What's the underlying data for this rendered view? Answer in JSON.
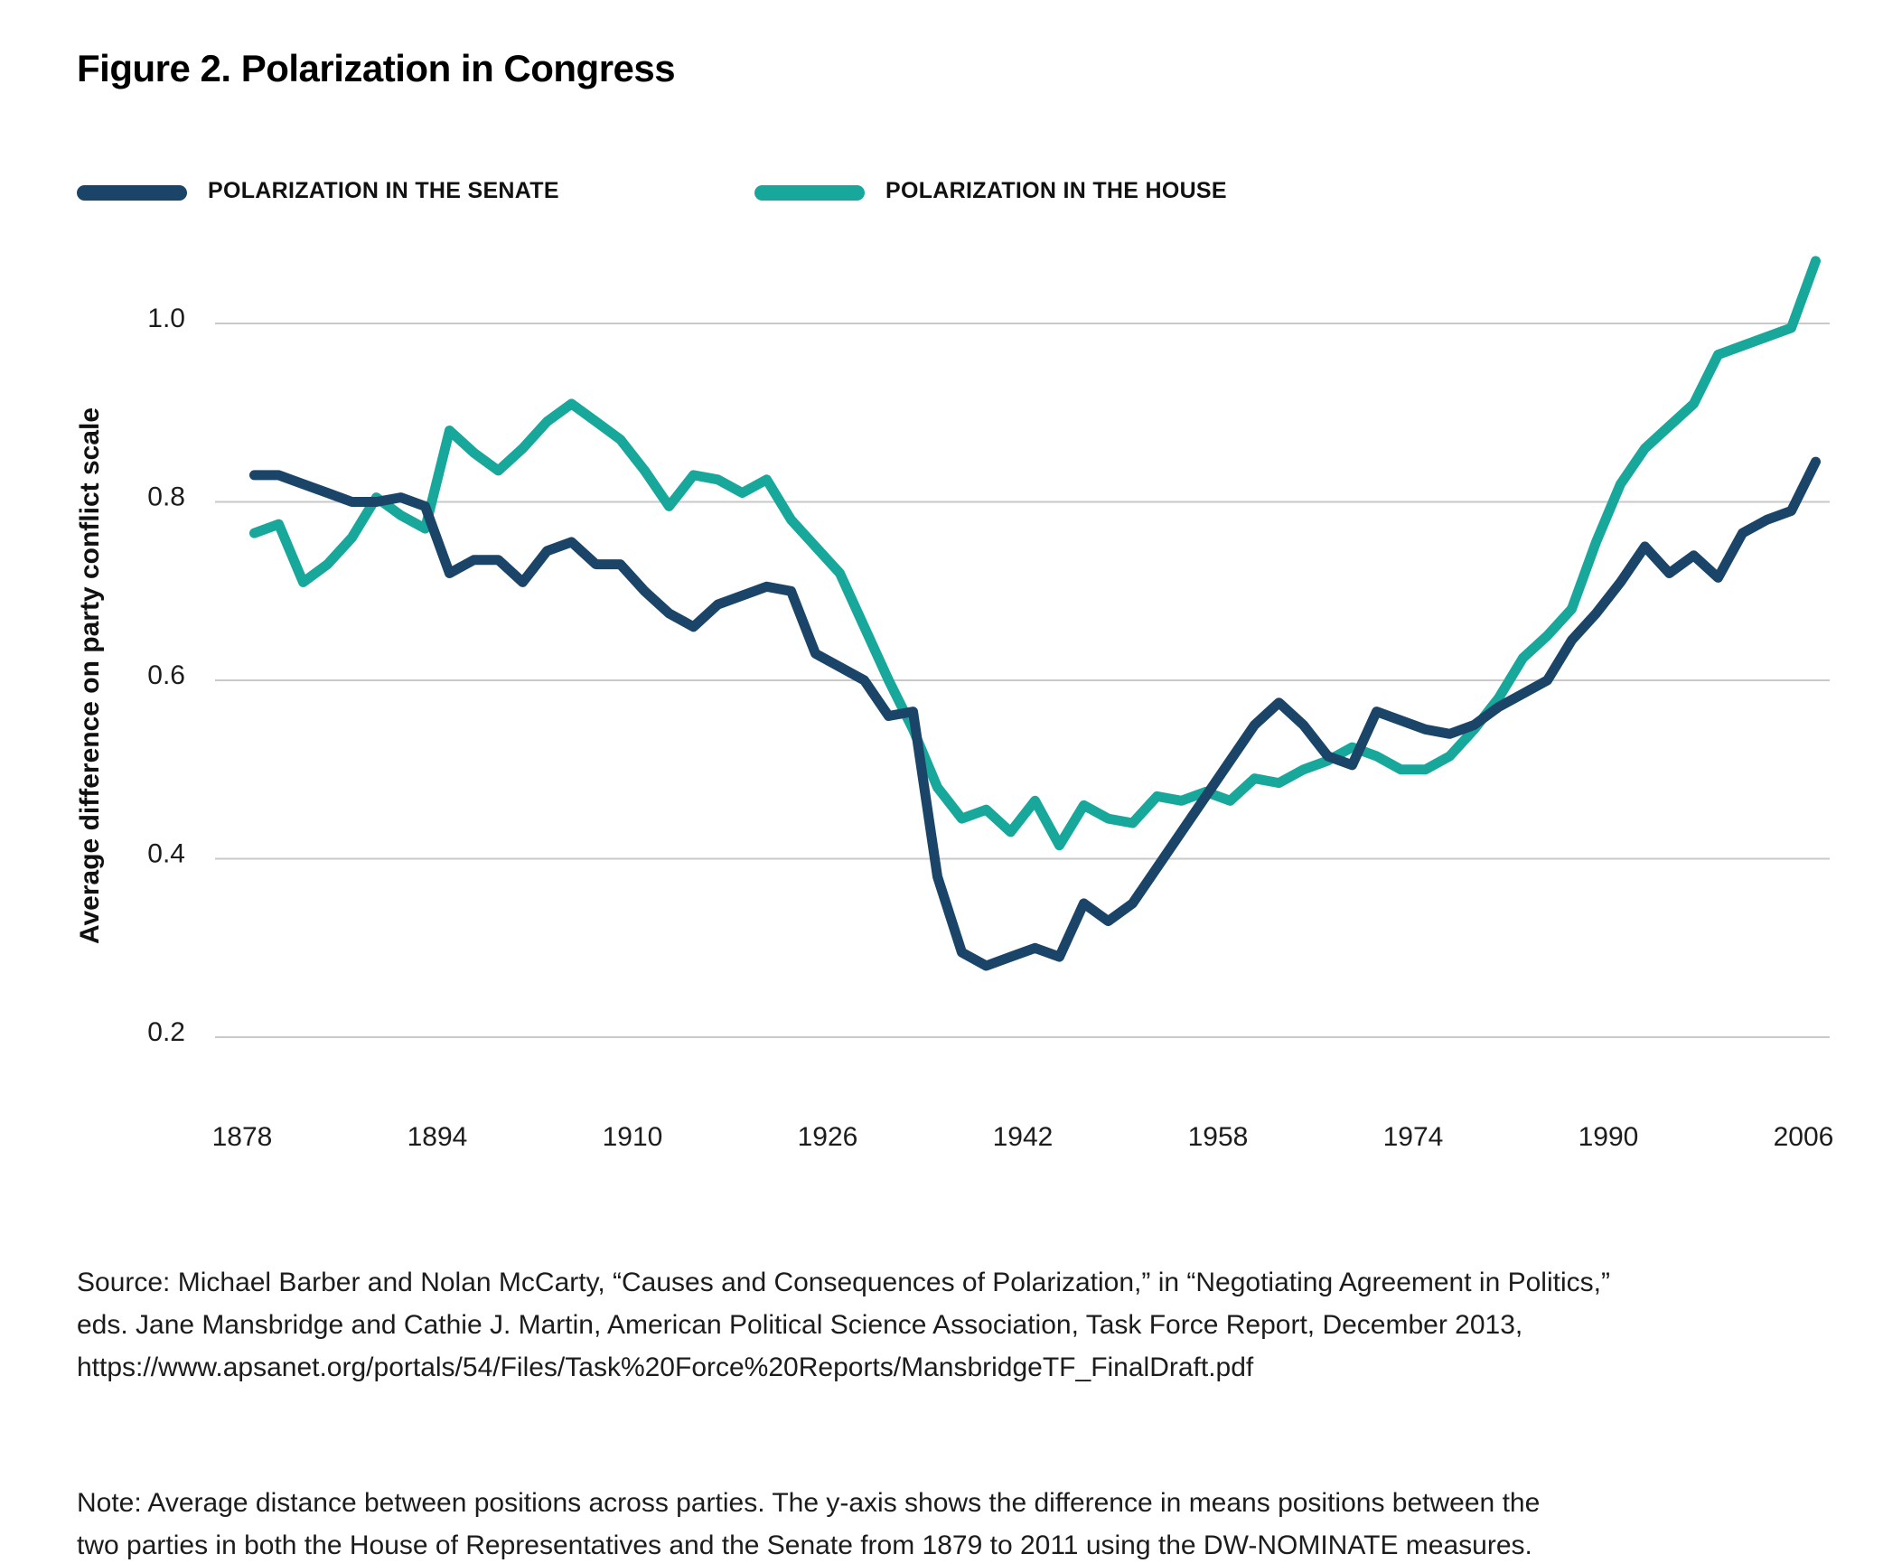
{
  "header": {
    "title": "Figure 2. Polarization in Congress"
  },
  "legend": {
    "senate": "POLARIZATION IN THE SENATE",
    "house": "POLARIZATION IN THE HOUSE"
  },
  "footer": {
    "source_lines": [
      "Source: Michael Barber and Nolan McCarty, “Causes and Consequences of Polarization,” in “Negotiating Agreement in Politics,”",
      "eds. Jane Mansbridge and Cathie J. Martin, American Political Science Association, Task Force Report, December 2013,",
      "https://www.apsanet.org/portals/54/Files/Task%20Force%20Reports/MansbridgeTF_FinalDraft.pdf"
    ],
    "note_lines": [
      "Note: Average distance between positions across parties. The y-axis shows the difference in means positions between the",
      "two parties in both the House of Representatives and the Senate from 1879 to 2011 using the DW-NOMINATE measures."
    ]
  },
  "chart_data": {
    "type": "line",
    "title": "Figure 2. Polarization in Congress",
    "xlabel": "",
    "ylabel": "Average difference on party conflict scale",
    "ylim": [
      0.2,
      1.1
    ],
    "grid": "horizontal-only",
    "grid_color": "#c9c9c9",
    "legend_position": "top-left",
    "y_ticks": [
      {
        "label": "1.0",
        "value": 1.0
      },
      {
        "label": "0.8",
        "value": 0.8
      },
      {
        "label": "0.6",
        "value": 0.6
      },
      {
        "label": "0.4",
        "value": 0.4
      },
      {
        "label": "0.2",
        "value": 0.2
      }
    ],
    "x_ticks": [
      "1878",
      "1894",
      "1910",
      "1926",
      "1942",
      "1958",
      "1974",
      "1990",
      "2006"
    ],
    "years": [
      1879,
      1881,
      1883,
      1885,
      1887,
      1889,
      1891,
      1893,
      1895,
      1897,
      1899,
      1901,
      1903,
      1905,
      1907,
      1909,
      1911,
      1913,
      1915,
      1917,
      1919,
      1921,
      1923,
      1925,
      1927,
      1929,
      1931,
      1933,
      1935,
      1937,
      1939,
      1941,
      1943,
      1945,
      1947,
      1949,
      1951,
      1953,
      1955,
      1957,
      1959,
      1961,
      1963,
      1965,
      1967,
      1969,
      1971,
      1973,
      1975,
      1977,
      1979,
      1981,
      1983,
      1985,
      1987,
      1989,
      1991,
      1993,
      1995,
      1997,
      1999,
      2001,
      2003,
      2005,
      2007
    ],
    "series": [
      {
        "name": "POLARIZATION IN THE SENATE",
        "color": "#1a4568",
        "values": [
          0.83,
          0.83,
          0.82,
          0.81,
          0.8,
          0.8,
          0.805,
          0.795,
          0.72,
          0.735,
          0.735,
          0.71,
          0.745,
          0.755,
          0.73,
          0.73,
          0.7,
          0.675,
          0.66,
          0.685,
          0.695,
          0.705,
          0.7,
          0.63,
          0.615,
          0.6,
          0.56,
          0.565,
          0.38,
          0.295,
          0.28,
          0.29,
          0.3,
          0.29,
          0.35,
          0.33,
          0.35,
          0.39,
          0.43,
          0.47,
          0.51,
          0.55,
          0.575,
          0.55,
          0.515,
          0.505,
          0.565,
          0.555,
          0.545,
          0.54,
          0.55,
          0.57,
          0.585,
          0.6,
          0.645,
          0.675,
          0.71,
          0.75,
          0.72,
          0.74,
          0.715,
          0.765,
          0.78,
          0.79,
          0.845
        ]
      },
      {
        "name": "POLARIZATION IN THE HOUSE",
        "color": "#17a89b",
        "values": [
          0.765,
          0.775,
          0.71,
          0.73,
          0.76,
          0.805,
          0.785,
          0.77,
          0.88,
          0.855,
          0.835,
          0.86,
          0.89,
          0.91,
          0.89,
          0.87,
          0.835,
          0.795,
          0.83,
          0.825,
          0.81,
          0.825,
          0.78,
          0.75,
          0.72,
          0.66,
          0.6,
          0.545,
          0.48,
          0.445,
          0.455,
          0.43,
          0.465,
          0.415,
          0.46,
          0.445,
          0.44,
          0.47,
          0.465,
          0.475,
          0.465,
          0.49,
          0.485,
          0.5,
          0.51,
          0.525,
          0.515,
          0.5,
          0.5,
          0.515,
          0.545,
          0.58,
          0.625,
          0.65,
          0.68,
          0.755,
          0.82,
          0.86,
          0.885,
          0.91,
          0.965,
          0.975,
          0.985,
          0.995,
          1.07
        ]
      }
    ]
  }
}
